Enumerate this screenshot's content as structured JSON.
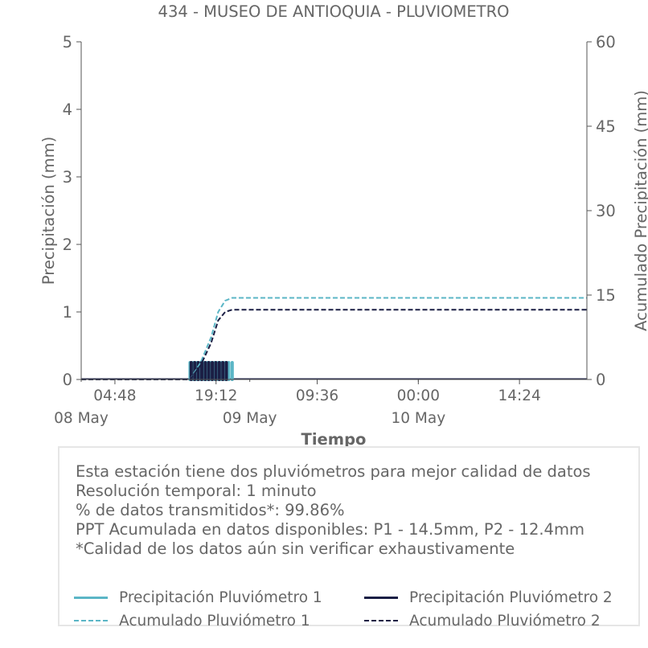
{
  "colors": {
    "pluvio1": "#5bb6c6",
    "pluvio2": "#1b1f45",
    "text": "#666666",
    "axis": "#555555"
  },
  "chart_data": {
    "type": "line",
    "title": "434 - MUSEO DE ANTIOQUIA - PLUVIOMETRO",
    "xlabel": "Tiempo",
    "ylabel_left": "Precipitación (mm)",
    "ylabel_right": "Acumulado Precipitación (mm)",
    "x_range": [
      "08 May 00:00",
      "11 May 00:00"
    ],
    "ylim_left": [
      0,
      5
    ],
    "ylim_right": [
      0,
      60
    ],
    "yticks_left": [
      "0",
      "1",
      "2",
      "3",
      "4",
      "5"
    ],
    "yticks_right": [
      "0",
      "15",
      "30",
      "45",
      "60"
    ],
    "xticks": [
      {
        "time": "08 May 04:48",
        "label": "04:48"
      },
      {
        "time": "08 May 19:12",
        "label": "19:12"
      },
      {
        "time": "09 May 09:36",
        "label": "09:36"
      },
      {
        "time": "10 May 00:00",
        "label": "00:00"
      },
      {
        "time": "10 May 14:24",
        "label": "14:24"
      }
    ],
    "date_labels": [
      {
        "time": "08 May 00:00",
        "label": "08 May"
      },
      {
        "time": "09 May 00:00",
        "label": "09 May"
      },
      {
        "time": "10 May 00:00",
        "label": "10 May"
      }
    ],
    "grid": false,
    "series": [
      {
        "name": "Precipitación Pluviómetro 1",
        "axis": "left",
        "style": "bars",
        "times": [
          "08 May 15:30",
          "08 May 16:00",
          "08 May 16:30",
          "08 May 17:00",
          "08 May 17:30",
          "08 May 18:00",
          "08 May 18:30",
          "08 May 19:00",
          "08 May 19:30",
          "08 May 20:00",
          "08 May 20:30",
          "08 May 21:00",
          "08 May 21:30"
        ],
        "values": [
          0.25,
          0.25,
          0.25,
          0.25,
          0.25,
          0.25,
          0.25,
          0.25,
          0.25,
          0.25,
          0.25,
          0.25,
          0.25
        ]
      },
      {
        "name": "Precipitación Pluviómetro 2",
        "axis": "left",
        "style": "bars",
        "times": [
          "08 May 15:40",
          "08 May 16:10",
          "08 May 16:40",
          "08 May 17:10",
          "08 May 17:40",
          "08 May 18:10",
          "08 May 18:40",
          "08 May 19:10",
          "08 May 19:40",
          "08 May 20:10",
          "08 May 20:40"
        ],
        "values": [
          0.25,
          0.25,
          0.25,
          0.25,
          0.25,
          0.25,
          0.25,
          0.25,
          0.25,
          0.25,
          0.25
        ]
      },
      {
        "name": "Acumulado Pluviómetro 1",
        "axis": "right",
        "style": "dashed",
        "times": [
          "08 May 00:00",
          "08 May 15:30",
          "08 May 17:00",
          "08 May 18:30",
          "08 May 19:30",
          "08 May 20:30",
          "08 May 21:30",
          "11 May 00:00"
        ],
        "values": [
          0,
          0,
          3.0,
          7.5,
          12.0,
          14.0,
          14.5,
          14.5
        ]
      },
      {
        "name": "Acumulado Pluviómetro 2",
        "axis": "right",
        "style": "dashed",
        "times": [
          "08 May 00:00",
          "08 May 15:30",
          "08 May 17:00",
          "08 May 18:30",
          "08 May 19:30",
          "08 May 20:30",
          "08 May 21:30",
          "11 May 00:00"
        ],
        "values": [
          0,
          0,
          2.5,
          6.5,
          10.5,
          12.0,
          12.4,
          12.4
        ]
      }
    ]
  },
  "info": {
    "lines": [
      "Esta estación tiene dos pluviómetros para mejor calidad de datos",
      "Resolución temporal: 1 minuto",
      "% de datos transmitidos*: 99.86%",
      "PPT Acumulada en datos disponibles: P1 - 14.5mm, P2 - 12.4mm",
      "*Calidad de los datos aún sin verificar exhaustivamente"
    ]
  },
  "legend": {
    "items": [
      {
        "label": "Precipitación Pluviómetro 1",
        "series": 0,
        "style": "solid"
      },
      {
        "label": "Precipitación Pluviómetro 2",
        "series": 1,
        "style": "solid"
      },
      {
        "label": "Acumulado Pluviómetro 1",
        "series": 2,
        "style": "dashed"
      },
      {
        "label": "Acumulado Pluviómetro 2",
        "series": 3,
        "style": "dashed"
      }
    ]
  }
}
